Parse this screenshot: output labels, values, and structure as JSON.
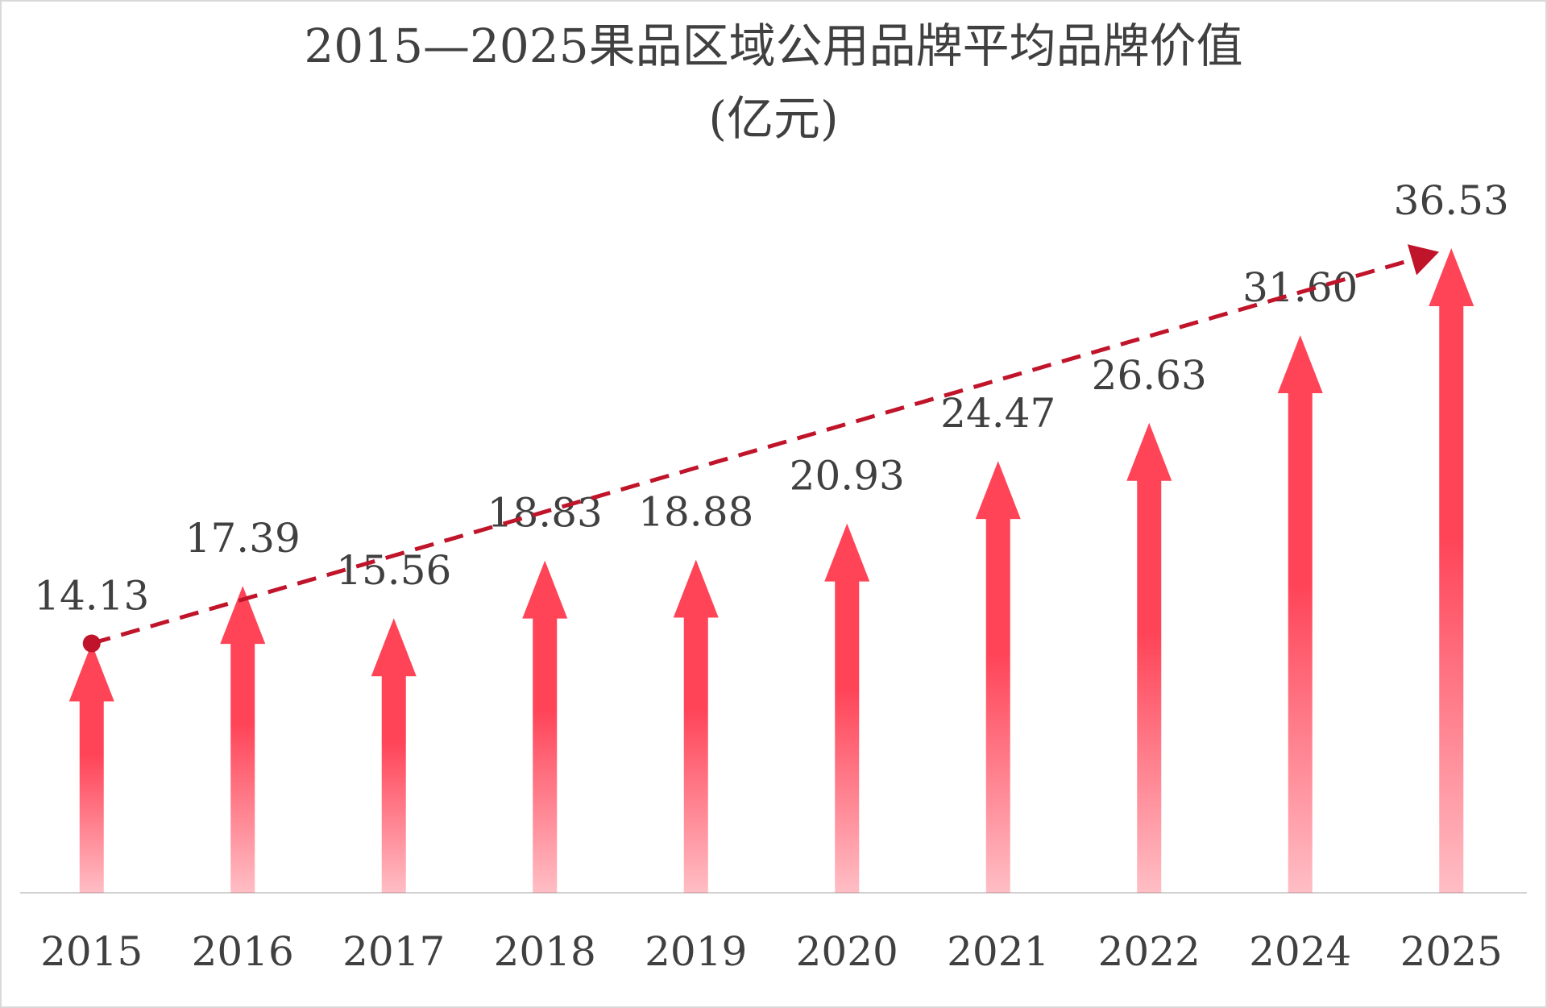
{
  "chart_data": {
    "type": "arrow-bar",
    "title": "2015—2025果品区域公用品牌平均品牌价值",
    "subtitle": "(亿元)",
    "categories": [
      "2015",
      "2016",
      "2017",
      "2018",
      "2019",
      "2020",
      "2021",
      "2022",
      "2024",
      "2025"
    ],
    "values": [
      14.13,
      17.39,
      15.56,
      18.83,
      18.88,
      20.93,
      24.47,
      26.63,
      31.6,
      36.53
    ],
    "value_labels": [
      "14.13",
      "17.39",
      "15.56",
      "18.83",
      "18.88",
      "20.93",
      "24.47",
      "26.63",
      "31.60",
      "36.53"
    ],
    "color": "#ff4458",
    "trend_color": "#c0142a",
    "ylim": [
      0,
      40
    ]
  }
}
